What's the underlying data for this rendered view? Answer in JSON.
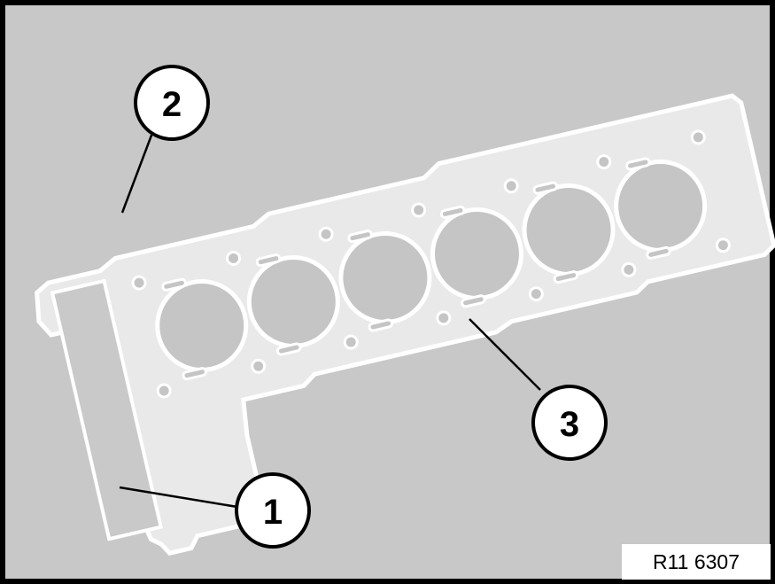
{
  "callouts": [
    {
      "id": "1",
      "label": "1"
    },
    {
      "id": "2",
      "label": "2"
    },
    {
      "id": "3",
      "label": "3"
    }
  ],
  "reference_code": "R11 6307",
  "colors": {
    "background": "#c8c8c8",
    "gasket_fill": "#eaeaea",
    "gasket_outline": "#ffffff",
    "bore_fill": "#c4c4c4",
    "border": "#000000"
  }
}
